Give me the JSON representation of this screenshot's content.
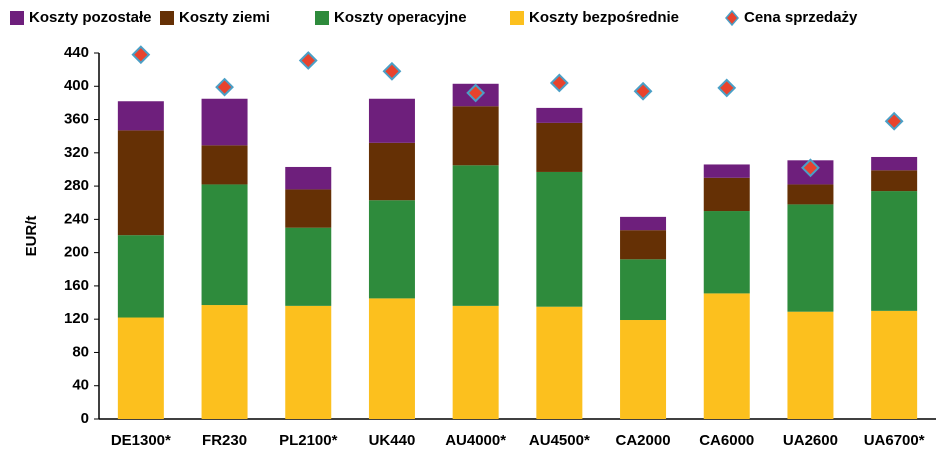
{
  "chart_data": {
    "type": "bar",
    "stacked": true,
    "categories": [
      "DE1300*",
      "FR230",
      "PL2100*",
      "UK440",
      "AU4000*",
      "AU4500*",
      "CA2000",
      "CA6000",
      "UA2600",
      "UA6700*"
    ],
    "ylabel": "EUR/t",
    "ylim": [
      0,
      440
    ],
    "yticks": [
      0,
      40,
      80,
      120,
      160,
      200,
      240,
      280,
      320,
      360,
      400,
      440
    ],
    "series": [
      {
        "name": "Koszty pozostałe",
        "color": "#6e1f7c",
        "values": [
          35,
          56,
          27,
          53,
          27,
          18,
          16,
          16,
          29,
          16
        ]
      },
      {
        "name": "Koszty ziemi",
        "color": "#653005",
        "values": [
          126,
          47,
          46,
          69,
          71,
          59,
          35,
          40,
          24,
          25
        ]
      },
      {
        "name": "Koszty operacyjne",
        "color": "#2e8b3c",
        "values": [
          99,
          145,
          94,
          118,
          169,
          162,
          73,
          99,
          129,
          144
        ]
      },
      {
        "name": "Koszty bezpośrednie",
        "color": "#fcc01e",
        "values": [
          122,
          137,
          136,
          145,
          136,
          135,
          119,
          151,
          129,
          130
        ]
      },
      {
        "name": "Cena sprzedaży",
        "type": "scatter",
        "color": "#e8432d",
        "edge": "#4a9fc6",
        "values": [
          438,
          399,
          431,
          418,
          392,
          404,
          394,
          398,
          302,
          358
        ]
      }
    ]
  }
}
